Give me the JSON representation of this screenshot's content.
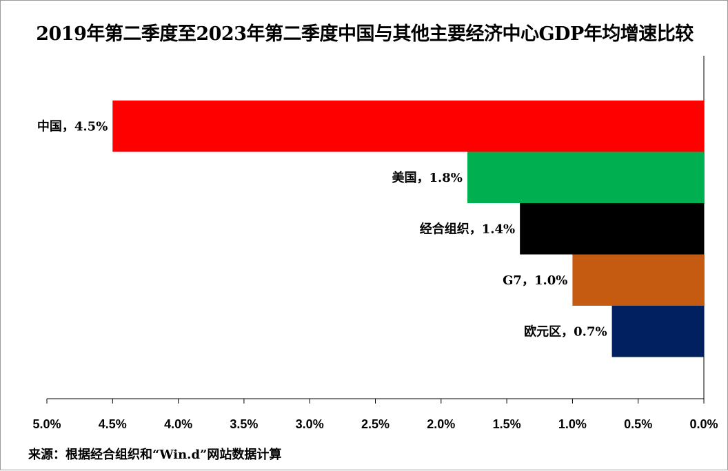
{
  "chart_data": {
    "type": "bar",
    "orientation": "horizontal",
    "x_axis_reversed": true,
    "title": "2019年第二季度至2023年第二季度中国与其他主要经济中心GDP年均增速比较",
    "source": "来源：根据经合组织和“Win.d”网站数据计算",
    "xlim": [
      0,
      5.0
    ],
    "ticks": [
      5.0,
      4.5,
      4.0,
      3.5,
      3.0,
      2.5,
      2.0,
      1.5,
      1.0,
      0.5,
      0.0
    ],
    "tick_labels": [
      "5.0%",
      "4.5%",
      "4.0%",
      "3.5%",
      "3.0%",
      "2.5%",
      "2.0%",
      "1.5%",
      "1.0%",
      "0.5%",
      "0.0%"
    ],
    "grid": false,
    "legend": "none",
    "categories": [
      "中国",
      "美国",
      "经合组织",
      "G7",
      "欧元区"
    ],
    "values": [
      4.5,
      1.8,
      1.4,
      1.0,
      0.7
    ],
    "data_labels": [
      "中国，4.5%",
      "美国，1.8%",
      "经合组织，1.4%",
      "G7，1.0%",
      "欧元区，0.7%"
    ],
    "colors": [
      "#ff0000",
      "#00b050",
      "#000000",
      "#c55a11",
      "#002060"
    ]
  }
}
